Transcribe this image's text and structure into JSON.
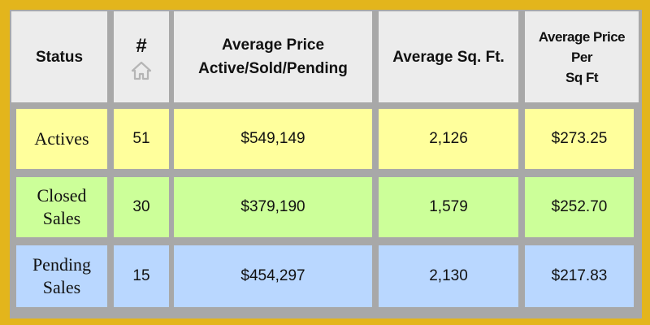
{
  "table": {
    "headers": {
      "status": "Status",
      "count": "#",
      "avg_price_line1": "Average Price",
      "avg_price_line2": "Active/Sold/Pending",
      "avg_sqft": "Average Sq. Ft.",
      "price_per_sqft_line1": "Average Price",
      "price_per_sqft_line2": "Per",
      "price_per_sqft_line3": "Sq Ft"
    },
    "count_icon": "house-icon",
    "rows": [
      {
        "status_line1": "Actives",
        "status_line2": "",
        "count": "51",
        "avg_price": "$549,149",
        "avg_sqft": "2,126",
        "price_per_sqft": "$273.25"
      },
      {
        "status_line1": "Closed",
        "status_line2": "Sales",
        "count": "30",
        "avg_price": "$379,190",
        "avg_sqft": "1,579",
        "price_per_sqft": "$252.70"
      },
      {
        "status_line1": "Pending",
        "status_line2": "Sales",
        "count": "15",
        "avg_price": "$454,297",
        "avg_sqft": "2,130",
        "price_per_sqft": "$217.83"
      }
    ],
    "colors": {
      "border": "#e3b51c",
      "header_bg": "#ececec",
      "actives_bg": "#ffff9c",
      "closed_bg": "#ccff99",
      "pending_bg": "#b9d7ff",
      "grid": "#a8a8a8"
    }
  }
}
